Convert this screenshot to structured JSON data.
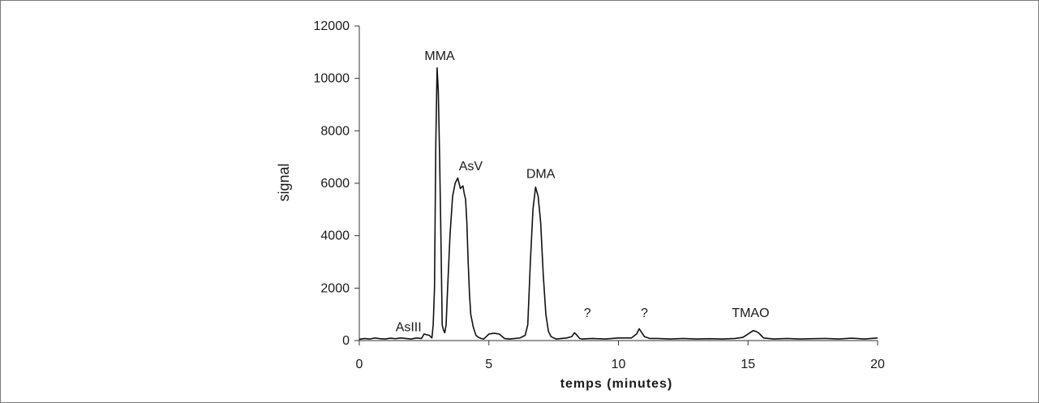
{
  "chart_data": {
    "type": "line",
    "title": "",
    "xlabel": "temps (minutes)",
    "ylabel": "signal",
    "xlim": [
      0,
      20
    ],
    "ylim": [
      0,
      12000
    ],
    "x_ticks": [
      "0",
      "5",
      "10",
      "15",
      "20"
    ],
    "y_ticks": [
      "0",
      "2000",
      "4000",
      "6000",
      "8000",
      "10000",
      "12000"
    ],
    "grid": false,
    "legend": "none",
    "line_color": "#111111",
    "series": [
      {
        "x": [
          0,
          0.2,
          0.4,
          0.6,
          0.8,
          1.0,
          1.2,
          1.4,
          1.6,
          1.8,
          2.0,
          2.2,
          2.4,
          2.5,
          2.6,
          2.7,
          2.8,
          2.85,
          2.9,
          2.95,
          3.0,
          3.05,
          3.1,
          3.15,
          3.2,
          3.25,
          3.3,
          3.35,
          3.4,
          3.5,
          3.6,
          3.7,
          3.8,
          3.9,
          4.0,
          4.05,
          4.1,
          4.15,
          4.2,
          4.25,
          4.3,
          4.4,
          4.5,
          4.6,
          4.7,
          4.8,
          4.9,
          5.0,
          5.2,
          5.4,
          5.6,
          5.8,
          6.0,
          6.2,
          6.4,
          6.5,
          6.6,
          6.7,
          6.8,
          6.9,
          7.0,
          7.1,
          7.2,
          7.3,
          7.4,
          7.5,
          7.6,
          7.8,
          8.0,
          8.2,
          8.3,
          8.4,
          8.5,
          8.6,
          8.8,
          9.0,
          9.5,
          10.0,
          10.5,
          10.7,
          10.8,
          10.9,
          11.0,
          11.2,
          11.5,
          12.0,
          12.5,
          13.0,
          13.5,
          14.0,
          14.5,
          14.8,
          15.0,
          15.2,
          15.3,
          15.4,
          15.5,
          15.6,
          15.8,
          16.0,
          16.5,
          17.0,
          17.5,
          18.0,
          18.5,
          19.0,
          19.5,
          20.0
        ],
        "y": [
          50,
          80,
          60,
          100,
          70,
          60,
          90,
          70,
          100,
          80,
          60,
          100,
          80,
          250,
          220,
          200,
          100,
          600,
          2000,
          7500,
          10400,
          9500,
          7000,
          4000,
          600,
          400,
          300,
          600,
          1800,
          4000,
          5500,
          6000,
          6200,
          5800,
          5900,
          5600,
          5400,
          4500,
          3000,
          1800,
          1000,
          500,
          200,
          120,
          80,
          60,
          150,
          250,
          280,
          250,
          80,
          60,
          80,
          100,
          200,
          600,
          3000,
          5000,
          5850,
          5500,
          4500,
          2500,
          1000,
          350,
          150,
          100,
          60,
          80,
          100,
          150,
          300,
          200,
          80,
          60,
          70,
          80,
          60,
          100,
          100,
          250,
          450,
          300,
          150,
          80,
          80,
          60,
          80,
          60,
          70,
          60,
          80,
          120,
          250,
          380,
          350,
          300,
          200,
          100,
          80,
          60,
          80,
          60,
          70,
          80,
          60,
          90,
          60,
          100
        ]
      }
    ],
    "annotations": [
      {
        "text": "AsIII",
        "x": 1.9,
        "y": 350
      },
      {
        "text": "MMA",
        "x": 3.1,
        "y": 10700
      },
      {
        "text": "AsV",
        "x": 4.3,
        "y": 6500
      },
      {
        "text": "DMA",
        "x": 7.0,
        "y": 6200
      },
      {
        "text": "?",
        "x": 8.8,
        "y": 900
      },
      {
        "text": "?",
        "x": 11.0,
        "y": 900
      },
      {
        "text": "TMAO",
        "x": 15.1,
        "y": 900
      }
    ]
  }
}
